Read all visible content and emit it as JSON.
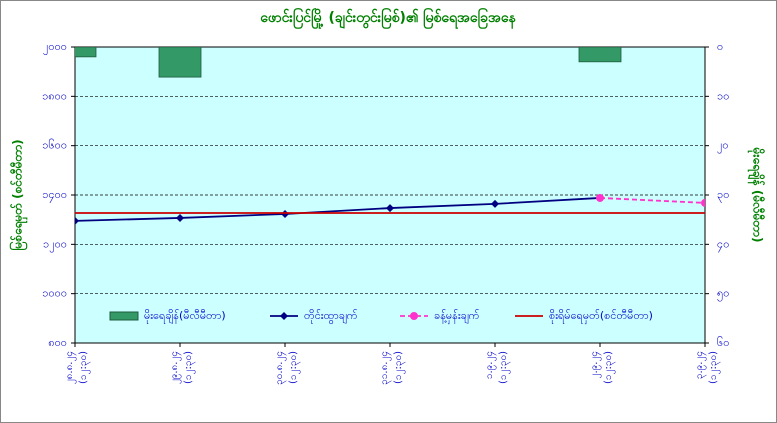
{
  "chart_data": {
    "type": "combo",
    "title": "ဖောင်းပြင်မြို့ (ချင်းတွင်းမြစ်)၏ မြစ်ရေအခြေအနေ",
    "y_label": "မြစ်ရေမှတ် (စင်တီမီတာ)",
    "y2_label": "မိုးရေချိန် (မီလီမီတာ)",
    "categories": [
      [
        "၂၈.၈.၂၄",
        "(၁၂:၃၀)"
      ],
      [
        "၂၉.၈.၂၄",
        "(၁၂:၃၀)"
      ],
      [
        "၃၀.၈.၂၄",
        "(၁၂:၃၀)"
      ],
      [
        "၃၁.၈.၂၄",
        "(၁၂:၃၀)"
      ],
      [
        "၁.၉.၂၄",
        "(၁၂:၃၀)"
      ],
      [
        "၂.၉.၂၄",
        "(၁၂:၃၀)"
      ],
      [
        "၃.၉.၂၄",
        "(၁၂:၃၀)"
      ]
    ],
    "ylim": [
      800,
      2000
    ],
    "yticks": [
      {
        "value": 800,
        "label": "၈၀၀"
      },
      {
        "value": 1000,
        "label": "၁၀၀၀"
      },
      {
        "value": 1200,
        "label": "၁၂၀၀"
      },
      {
        "value": 1400,
        "label": "၁၄၀၀"
      },
      {
        "value": 1600,
        "label": "၁၆၀၀"
      },
      {
        "value": 1800,
        "label": "၁၈၀၀"
      },
      {
        "value": 2000,
        "label": "၂၀၀၀"
      }
    ],
    "y2lim": [
      0,
      60
    ],
    "y2_inverted": true,
    "y2ticks": [
      {
        "value": 0,
        "label": "၀"
      },
      {
        "value": 10,
        "label": "၁၀"
      },
      {
        "value": 20,
        "label": "၂၀"
      },
      {
        "value": 30,
        "label": "၃၀"
      },
      {
        "value": 40,
        "label": "၄၀"
      },
      {
        "value": 50,
        "label": "၅၀"
      },
      {
        "value": 60,
        "label": "၆၀"
      }
    ],
    "grid": true,
    "series": [
      {
        "name": "မိုးရေချိန်(မီလီမီတာ)",
        "type": "bar",
        "axis": "y2",
        "color": "#339966",
        "values": [
          2,
          6.1,
          0,
          0,
          0,
          3,
          null
        ]
      },
      {
        "name": "တိုင်းထွာချက်",
        "type": "line",
        "color": "#000080",
        "values": [
          1295,
          1307,
          1323,
          1347,
          1364,
          1388,
          null
        ]
      },
      {
        "name": "ခန့်မှန်းချက်",
        "type": "dashed",
        "color": "#ff33cc",
        "values": [
          null,
          null,
          null,
          null,
          null,
          1388,
          1368
        ]
      },
      {
        "name": "စိုးရိမ်ရေမှတ်(စင်တီမီတာ)",
        "type": "plain",
        "color": "#cc0000",
        "values": [
          1327,
          1327,
          1327,
          1327,
          1327,
          1327,
          1327
        ]
      }
    ]
  }
}
